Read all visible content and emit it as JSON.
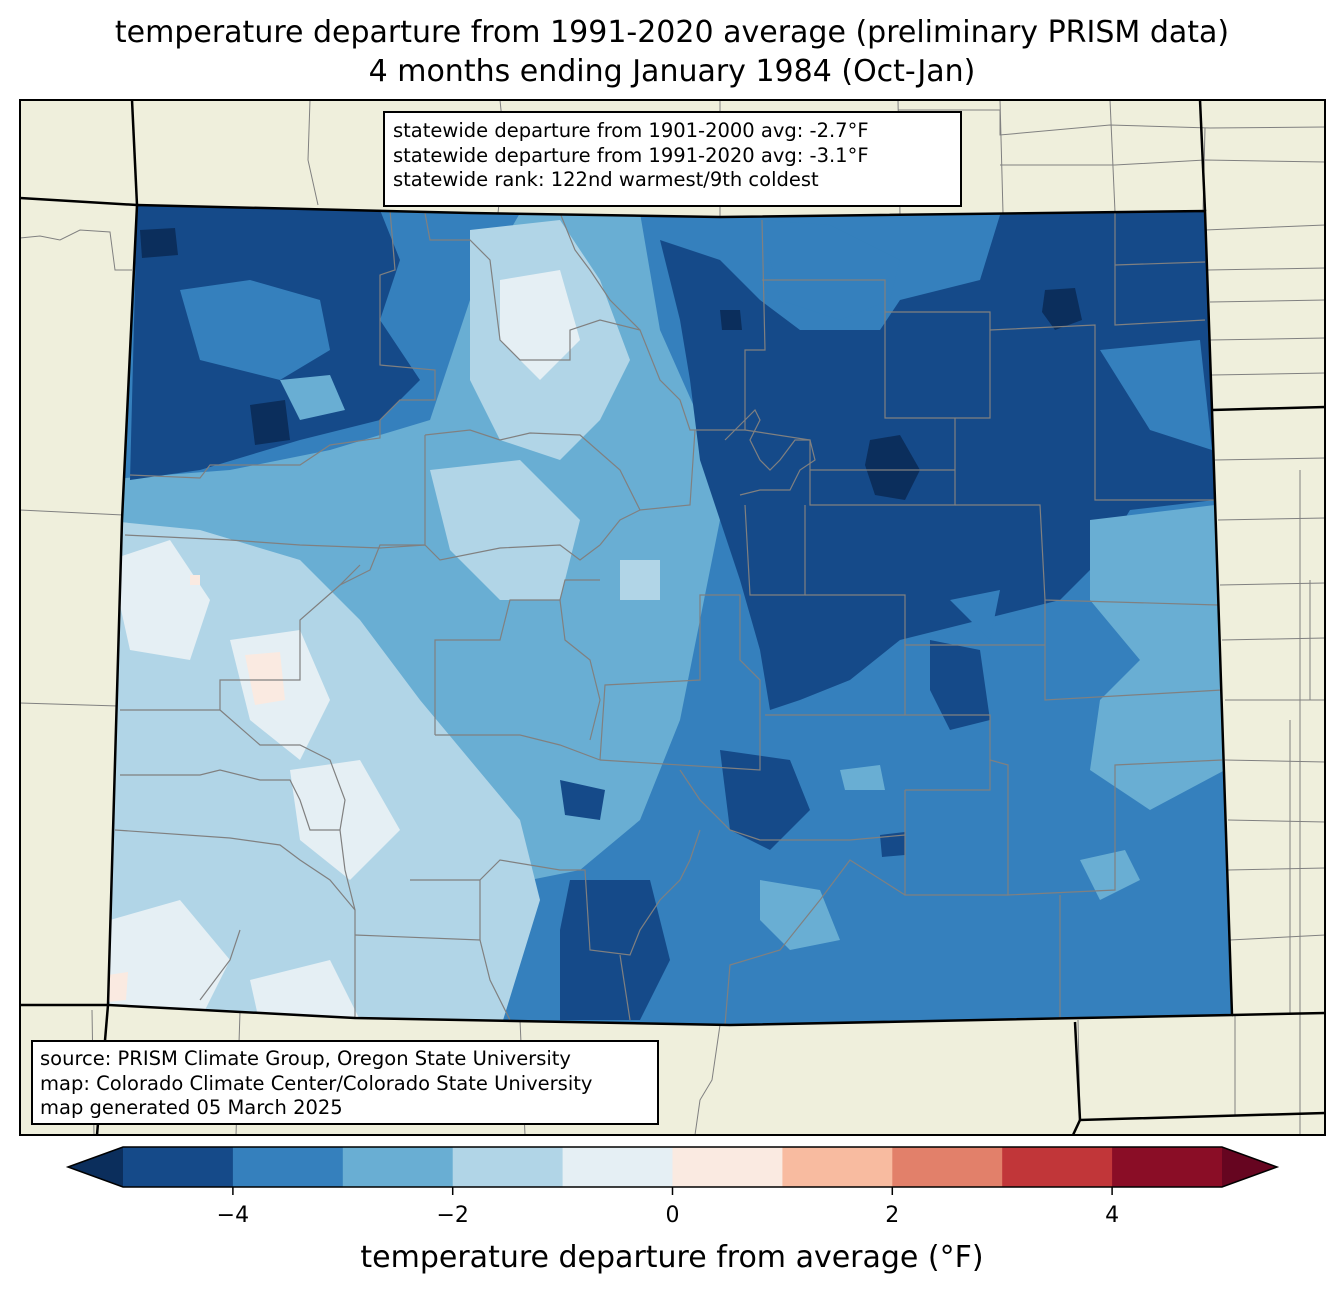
{
  "title_line1": "temperature departure from 1991-2020 average (preliminary PRISM data)",
  "title_line2": "4 months ending January 1984 (Oct-Jan)",
  "stats": {
    "line1": "statewide departure from 1901-2000 avg: -2.7°F",
    "line2": "statewide departure from 1991-2020 avg: -3.1°F",
    "line3": "statewide rank: 122nd warmest/9th coldest"
  },
  "source": {
    "line1": "source: PRISM Climate Group, Oregon State University",
    "line2": "map: Colorado Climate Center/Colorado State University",
    "line3": "map generated 05 March 2025"
  },
  "colorbar": {
    "label": "temperature departure from average (°F)",
    "bounds": [
      -5,
      -4,
      -3,
      -2,
      -1,
      0,
      1,
      2,
      3,
      4,
      5
    ],
    "colors": [
      "#154a89",
      "#3580bd",
      "#69aed3",
      "#b1d5e7",
      "#e5eff4",
      "#faeae1",
      "#f8bba0",
      "#e2806a",
      "#c13639",
      "#8a0d26"
    ],
    "under_color": "#0b2e5c",
    "over_color": "#660520",
    "ticks": [
      {
        "value": -4,
        "label": "−4"
      },
      {
        "value": -2,
        "label": "−2"
      },
      {
        "value": 0,
        "label": "0"
      },
      {
        "value": 2,
        "label": "2"
      },
      {
        "value": 4,
        "label": "4"
      }
    ]
  },
  "map_colors": {
    "land_background": "#efefdc",
    "state_border": "#000000",
    "county_border": "#808080"
  }
}
